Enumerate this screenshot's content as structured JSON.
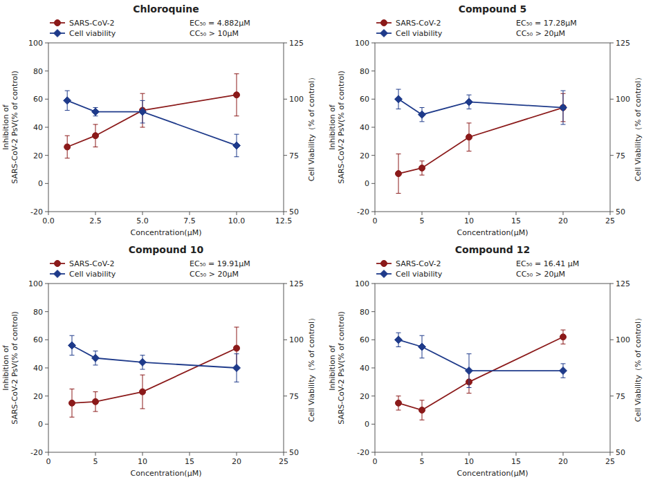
{
  "chart_data": [
    {
      "type": "line",
      "title": "Chloroquine",
      "xlabel": "Concentration(μM)",
      "ylabel": "Inhibition of\nSARS-CoV-2 PsV(% of control)",
      "y2label": "Cell Viability（% of control）",
      "xlim": [
        0,
        12.5
      ],
      "xticks": [
        {
          "value": 0,
          "label": "0.0"
        },
        2.5,
        {
          "value": 5,
          "label": "5.0"
        },
        7.5,
        {
          "value": 10,
          "label": "10.0"
        },
        12.5
      ],
      "ylim": [
        -20,
        100
      ],
      "yticks": [
        -20,
        0,
        20,
        40,
        60,
        80,
        100
      ],
      "y2lim": [
        50,
        125
      ],
      "y2ticks": [
        50,
        75,
        100,
        125
      ],
      "grid": false,
      "legend": "upper left",
      "annotations": [
        "EC₅₀ = 4.882μM",
        "CC₅₀ > 10μM"
      ],
      "x": [
        1.0,
        2.5,
        5.0,
        10.0
      ],
      "series": [
        {
          "name": "SARS-CoV-2",
          "color": "#8B1A1A",
          "marker": "circle",
          "values": [
            26.0,
            34.0,
            52.0,
            63.0
          ],
          "errors": [
            8.0,
            8.0,
            12.0,
            15.0
          ]
        },
        {
          "name": "Cell viability",
          "color": "#1E3A8A",
          "marker": "diamond",
          "values": [
            59.0,
            51.0,
            51.0,
            27.0
          ],
          "errors": [
            7.0,
            3.0,
            8.0,
            8.0
          ]
        }
      ]
    },
    {
      "type": "line",
      "title": "Compound 5",
      "xlabel": "Concentration(μM)",
      "ylabel": "Inhibition of\nSARS-CoV-2 PsV(% of control)",
      "y2label": "Cell Viability（% of control）",
      "xlim": [
        0,
        25
      ],
      "xticks": [
        0,
        5,
        10,
        15,
        20,
        25
      ],
      "ylim": [
        -20,
        100
      ],
      "yticks": [
        -20,
        0,
        20,
        40,
        60,
        80,
        100
      ],
      "y2lim": [
        50,
        125
      ],
      "y2ticks": [
        50,
        75,
        100,
        125
      ],
      "grid": false,
      "legend": "upper left",
      "annotations": [
        "EC₅₀ = 17.28μM",
        "CC₅₀ > 20μM"
      ],
      "x": [
        2.5,
        5.0,
        10.0,
        20.0
      ],
      "series": [
        {
          "name": "SARS-CoV-2",
          "color": "#8B1A1A",
          "marker": "circle",
          "values": [
            7.0,
            11.0,
            33.0,
            54.0
          ],
          "errors": [
            14.0,
            5.0,
            10.0,
            10.0
          ]
        },
        {
          "name": "Cell viability",
          "color": "#1E3A8A",
          "marker": "diamond",
          "values": [
            60.0,
            49.0,
            58.0,
            54.0
          ],
          "errors": [
            7.0,
            5.0,
            5.0,
            12.0
          ]
        }
      ]
    },
    {
      "type": "line",
      "title": "Compound 10",
      "xlabel": "Concentration(μM)",
      "ylabel": "Inhibition of\nSARS-CoV-2 PsV(% of control)",
      "y2label": "Cell Viability（% of control）",
      "xlim": [
        0,
        25
      ],
      "xticks": [
        0,
        5,
        10,
        15,
        20,
        25
      ],
      "ylim": [
        -20,
        100
      ],
      "yticks": [
        -20,
        0,
        20,
        40,
        60,
        80,
        100
      ],
      "y2lim": [
        50,
        125
      ],
      "y2ticks": [
        50,
        75,
        100,
        125
      ],
      "grid": false,
      "legend": "upper left",
      "annotations": [
        "EC₅₀ = 19.91μM",
        "CC₅₀ > 20μM"
      ],
      "x": [
        2.5,
        5.0,
        10.0,
        20.0
      ],
      "series": [
        {
          "name": "SARS-CoV-2",
          "color": "#8B1A1A",
          "marker": "circle",
          "values": [
            15.0,
            16.0,
            23.0,
            54.0
          ],
          "errors": [
            10.0,
            7.0,
            12.0,
            15.0
          ]
        },
        {
          "name": "Cell viability",
          "color": "#1E3A8A",
          "marker": "diamond",
          "values": [
            56.0,
            47.0,
            44.0,
            40.0
          ],
          "errors": [
            7.0,
            5.0,
            5.0,
            10.0
          ]
        }
      ]
    },
    {
      "type": "line",
      "title": "Compound 12",
      "xlabel": "Concentration(μM)",
      "ylabel": "Inhibition of\nSARS-CoV-2 PsV(% of control)",
      "y2label": "Cell Viability（% of control）",
      "xlim": [
        0,
        25
      ],
      "xticks": [
        0,
        5,
        10,
        15,
        20,
        25
      ],
      "ylim": [
        -20,
        100
      ],
      "yticks": [
        -20,
        0,
        20,
        40,
        60,
        80,
        100
      ],
      "y2lim": [
        50,
        125
      ],
      "y2ticks": [
        50,
        75,
        100,
        125
      ],
      "grid": false,
      "legend": "upper left",
      "annotations": [
        "EC₅₀ = 16.41 μM",
        "CC₅₀ > 20μM"
      ],
      "x": [
        2.5,
        5.0,
        10.0,
        20.0
      ],
      "series": [
        {
          "name": "SARS-CoV-2",
          "color": "#8B1A1A",
          "marker": "circle",
          "values": [
            15.0,
            10.0,
            30.0,
            62.0
          ],
          "errors": [
            5.0,
            7.0,
            8.0,
            5.0
          ]
        },
        {
          "name": "Cell viability",
          "color": "#1E3A8A",
          "marker": "diamond",
          "values": [
            60.0,
            55.0,
            38.0,
            38.0
          ],
          "errors": [
            5.0,
            8.0,
            12.0,
            5.0
          ]
        }
      ]
    }
  ]
}
